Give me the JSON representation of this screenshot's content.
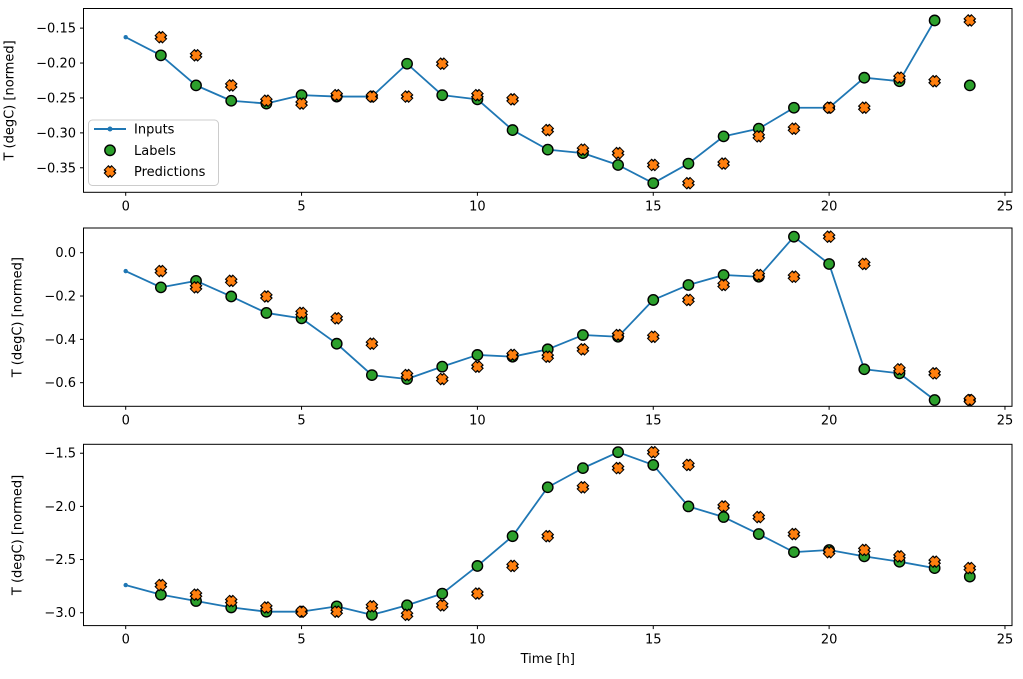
{
  "figure": {
    "background": "#ffffff",
    "axes_edge_color": "#000000",
    "text_color": "#000000",
    "xlabel": "Time [h]",
    "ylabel": "T (degC) [normed]"
  },
  "legend": {
    "position": "left-center of first subplot",
    "items": [
      {
        "label": "Inputs",
        "marker": "line-dot",
        "color": "#1f77b4",
        "edge": null
      },
      {
        "label": "Labels",
        "marker": "circle",
        "color": "#2ca02c",
        "edge": "#000000"
      },
      {
        "label": "Predictions",
        "marker": "X",
        "color": "#ff7f0e",
        "edge": "#000000"
      }
    ]
  },
  "chart_data": [
    {
      "type": "line",
      "title": "",
      "xlabel": "",
      "ylabel": "T (degC) [normed]",
      "grid": false,
      "xlim": [
        -1.2,
        25.2
      ],
      "ylim": [
        -0.3851,
        -0.1219
      ],
      "xticks": {
        "values": [
          0,
          5,
          10,
          15,
          20,
          25
        ],
        "labels": [
          "0",
          "5",
          "10",
          "15",
          "20",
          "25"
        ]
      },
      "yticks": {
        "values": [
          -0.15,
          -0.2,
          -0.25,
          -0.3,
          -0.35
        ],
        "labels": [
          "−0.15",
          "−0.20",
          "−0.25",
          "−0.30",
          "−0.35"
        ]
      },
      "series": [
        {
          "name": "Inputs",
          "style": "line+dot",
          "color": "#1f77b4",
          "x": [
            0,
            1,
            2,
            3,
            4,
            5,
            6,
            7,
            8,
            9,
            10,
            11,
            12,
            13,
            14,
            15,
            16,
            17,
            18,
            19,
            20,
            21,
            22,
            23
          ],
          "y": [
            -0.163,
            -0.189,
            -0.232,
            -0.254,
            -0.258,
            -0.246,
            -0.248,
            -0.248,
            -0.201,
            -0.246,
            -0.252,
            -0.296,
            -0.324,
            -0.329,
            -0.346,
            -0.372,
            -0.344,
            -0.305,
            -0.294,
            -0.264,
            -0.264,
            -0.221,
            -0.226,
            -0.139
          ]
        },
        {
          "name": "Labels",
          "style": "scatter-circle",
          "color": "#2ca02c",
          "x": [
            1,
            2,
            3,
            4,
            5,
            6,
            7,
            8,
            9,
            10,
            11,
            12,
            13,
            14,
            15,
            16,
            17,
            18,
            19,
            20,
            21,
            22,
            23,
            24
          ],
          "y": [
            -0.189,
            -0.232,
            -0.254,
            -0.258,
            -0.246,
            -0.248,
            -0.248,
            -0.201,
            -0.246,
            -0.252,
            -0.296,
            -0.324,
            -0.329,
            -0.346,
            -0.372,
            -0.344,
            -0.305,
            -0.294,
            -0.264,
            -0.264,
            -0.221,
            -0.226,
            -0.139,
            -0.232
          ]
        },
        {
          "name": "Predictions",
          "style": "scatter-X",
          "color": "#ff7f0e",
          "x": [
            1,
            2,
            3,
            4,
            5,
            6,
            7,
            8,
            9,
            10,
            11,
            12,
            13,
            14,
            15,
            16,
            17,
            18,
            19,
            20,
            21,
            22,
            23,
            24
          ],
          "y": [
            -0.163,
            -0.189,
            -0.232,
            -0.254,
            -0.258,
            -0.246,
            -0.248,
            -0.248,
            -0.201,
            -0.246,
            -0.252,
            -0.296,
            -0.324,
            -0.329,
            -0.346,
            -0.372,
            -0.344,
            -0.305,
            -0.294,
            -0.264,
            -0.264,
            -0.221,
            -0.226,
            -0.139
          ]
        }
      ]
    },
    {
      "type": "line",
      "title": "",
      "xlabel": "",
      "ylabel": "T (degC) [normed]",
      "grid": false,
      "xlim": [
        -1.2,
        25.2
      ],
      "ylim": [
        -0.709,
        0.114
      ],
      "xticks": {
        "values": [
          0,
          5,
          10,
          15,
          20,
          25
        ],
        "labels": [
          "0",
          "5",
          "10",
          "15",
          "20",
          "25"
        ]
      },
      "yticks": {
        "values": [
          0.0,
          -0.2,
          -0.4,
          -0.6
        ],
        "labels": [
          "0.0",
          "−0.2",
          "−0.4",
          "−0.6"
        ]
      },
      "series": [
        {
          "name": "Inputs",
          "style": "line+dot",
          "color": "#1f77b4",
          "x": [
            0,
            1,
            2,
            3,
            4,
            5,
            6,
            7,
            8,
            9,
            10,
            11,
            12,
            13,
            14,
            15,
            16,
            17,
            18,
            19,
            20,
            21,
            22,
            23
          ],
          "y": [
            -0.085,
            -0.16,
            -0.13,
            -0.202,
            -0.278,
            -0.303,
            -0.42,
            -0.565,
            -0.583,
            -0.526,
            -0.472,
            -0.48,
            -0.446,
            -0.38,
            -0.388,
            -0.218,
            -0.149,
            -0.103,
            -0.111,
            0.074,
            -0.052,
            -0.538,
            -0.557,
            -0.68
          ]
        },
        {
          "name": "Labels",
          "style": "scatter-circle",
          "color": "#2ca02c",
          "x": [
            1,
            2,
            3,
            4,
            5,
            6,
            7,
            8,
            9,
            10,
            11,
            12,
            13,
            14,
            15,
            16,
            17,
            18,
            19,
            20,
            21,
            22,
            23,
            24
          ],
          "y": [
            -0.16,
            -0.13,
            -0.202,
            -0.278,
            -0.303,
            -0.42,
            -0.565,
            -0.583,
            -0.526,
            -0.472,
            -0.48,
            -0.446,
            -0.38,
            -0.388,
            -0.218,
            -0.149,
            -0.103,
            -0.111,
            0.074,
            -0.052,
            -0.538,
            -0.557,
            -0.68,
            -0.68
          ]
        },
        {
          "name": "Predictions",
          "style": "scatter-X",
          "color": "#ff7f0e",
          "x": [
            1,
            2,
            3,
            4,
            5,
            6,
            7,
            8,
            9,
            10,
            11,
            12,
            13,
            14,
            15,
            16,
            17,
            18,
            19,
            20,
            21,
            22,
            23,
            24
          ],
          "y": [
            -0.085,
            -0.16,
            -0.13,
            -0.202,
            -0.278,
            -0.303,
            -0.42,
            -0.565,
            -0.583,
            -0.526,
            -0.472,
            -0.48,
            -0.446,
            -0.38,
            -0.388,
            -0.218,
            -0.149,
            -0.103,
            -0.111,
            0.074,
            -0.052,
            -0.538,
            -0.557,
            -0.68
          ]
        }
      ]
    },
    {
      "type": "line",
      "title": "",
      "xlabel": "Time [h]",
      "ylabel": "T (degC) [normed]",
      "grid": false,
      "xlim": [
        -1.2,
        25.2
      ],
      "ylim": [
        -3.121,
        -1.416
      ],
      "xticks": {
        "values": [
          0,
          5,
          10,
          15,
          20,
          25
        ],
        "labels": [
          "0",
          "5",
          "10",
          "15",
          "20",
          "25"
        ]
      },
      "yticks": {
        "values": [
          -1.5,
          -2.0,
          -2.5,
          -3.0
        ],
        "labels": [
          "−1.5",
          "−2.0",
          "−2.5",
          "−3.0"
        ]
      },
      "series": [
        {
          "name": "Inputs",
          "style": "line+dot",
          "color": "#1f77b4",
          "x": [
            0,
            1,
            2,
            3,
            4,
            5,
            6,
            7,
            8,
            9,
            10,
            11,
            12,
            13,
            14,
            15,
            16,
            17,
            18,
            19,
            20,
            21,
            22,
            23
          ],
          "y": [
            -2.74,
            -2.83,
            -2.89,
            -2.95,
            -2.99,
            -2.99,
            -2.94,
            -3.02,
            -2.93,
            -2.82,
            -2.56,
            -2.28,
            -1.82,
            -1.64,
            -1.49,
            -1.61,
            -2.0,
            -2.1,
            -2.26,
            -2.43,
            -2.41,
            -2.47,
            -2.52,
            -2.58
          ]
        },
        {
          "name": "Labels",
          "style": "scatter-circle",
          "color": "#2ca02c",
          "x": [
            1,
            2,
            3,
            4,
            5,
            6,
            7,
            8,
            9,
            10,
            11,
            12,
            13,
            14,
            15,
            16,
            17,
            18,
            19,
            20,
            21,
            22,
            23,
            24
          ],
          "y": [
            -2.83,
            -2.89,
            -2.95,
            -2.99,
            -2.99,
            -2.94,
            -3.02,
            -2.93,
            -2.82,
            -2.56,
            -2.28,
            -1.82,
            -1.64,
            -1.49,
            -1.61,
            -2.0,
            -2.1,
            -2.26,
            -2.43,
            -2.41,
            -2.47,
            -2.52,
            -2.58,
            -2.66
          ]
        },
        {
          "name": "Predictions",
          "style": "scatter-X",
          "color": "#ff7f0e",
          "x": [
            1,
            2,
            3,
            4,
            5,
            6,
            7,
            8,
            9,
            10,
            11,
            12,
            13,
            14,
            15,
            16,
            17,
            18,
            19,
            20,
            21,
            22,
            23,
            24
          ],
          "y": [
            -2.74,
            -2.83,
            -2.89,
            -2.95,
            -2.99,
            -2.99,
            -2.94,
            -3.02,
            -2.93,
            -2.82,
            -2.56,
            -2.28,
            -1.82,
            -1.64,
            -1.49,
            -1.61,
            -2.0,
            -2.1,
            -2.26,
            -2.43,
            -2.41,
            -2.47,
            -2.52,
            -2.58
          ]
        }
      ]
    }
  ]
}
